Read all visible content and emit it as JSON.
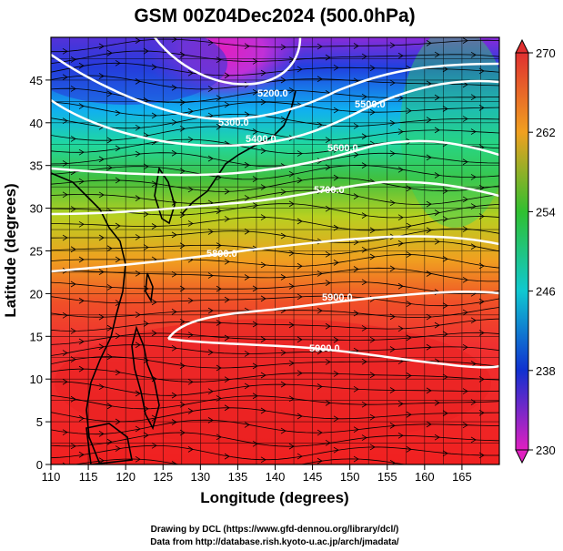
{
  "title": "GSM 00Z04Dec2024 (500.0hPa)",
  "xaxis": {
    "label": "Longitude (degrees)",
    "ticks": [
      "110",
      "115",
      "120",
      "125",
      "130",
      "135",
      "140",
      "145",
      "150",
      "155",
      "160",
      "165"
    ],
    "range": [
      110,
      170
    ]
  },
  "yaxis": {
    "label": "Latitude  (degrees)",
    "ticks": [
      "0",
      "5",
      "10",
      "15",
      "20",
      "25",
      "30",
      "35",
      "40",
      "45"
    ],
    "range": [
      0,
      50
    ]
  },
  "colorbar": {
    "ticks": [
      "230",
      "238",
      "246",
      "254",
      "262",
      "270"
    ],
    "range": [
      230,
      270
    ],
    "colors": [
      "#e020c0",
      "#1030d0",
      "#10c8d0",
      "#30c030",
      "#f0a020",
      "#e03030"
    ]
  },
  "contour_labels": [
    "5200.0",
    "5300.0",
    "5400.0",
    "5500.0",
    "5600.0",
    "5700.0",
    "5800.0",
    "5900.0",
    "5900.0",
    "5800.0"
  ],
  "credits": {
    "line1": "Drawing by DCL (https://www.gfd-dennou.org/library/dcl/)",
    "line2": "Data from http://database.rish.kyoto-u.ac.jp/arch/jmadata/"
  }
}
